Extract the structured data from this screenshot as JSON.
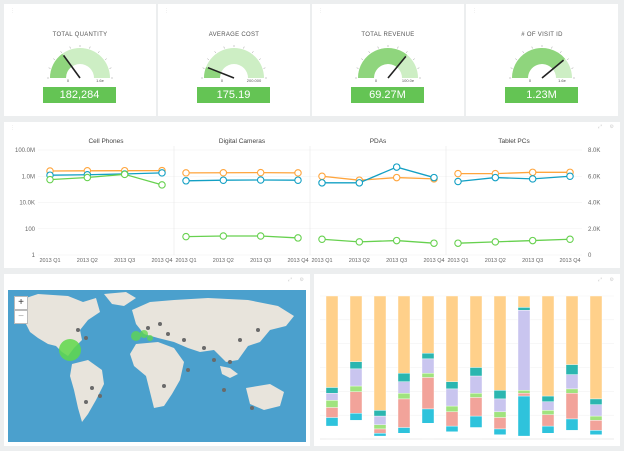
{
  "kpis": [
    {
      "title": "TOTAL QUANTITY",
      "value": "182,284",
      "min_label": "0",
      "max_label": "1.6e",
      "level": 0.3
    },
    {
      "title": "AVERAGE COST",
      "value": "175.19",
      "min_label": "0",
      "max_label": "200.000",
      "level": 0.12
    },
    {
      "title": "TOTAL REVENUE",
      "value": "69.27M",
      "min_label": "0",
      "max_label": "100.0e",
      "level": 0.72
    },
    {
      "title": "# OF VISIT ID",
      "value": "1.23M",
      "min_label": "0",
      "max_label": "1.6e",
      "level": 0.78
    }
  ],
  "colors": {
    "accent": "#64c454",
    "gauge_fill": "#8fd57d",
    "gauge_track": "#cdeec4",
    "orange": "#ffa53d",
    "blue": "#13a0c4",
    "green": "#67d14f"
  },
  "chart_data": {
    "type": "line",
    "panels": [
      "Cell Phones",
      "Digital Cameras",
      "PDAs",
      "Tablet PCs"
    ],
    "categories": [
      "2013 Q1",
      "2013 Q2",
      "2013 Q3",
      "2013 Q4"
    ],
    "y_left": {
      "scale": "log",
      "ticks": [
        "100.0M",
        "1.0M",
        "10.0K",
        "100",
        "1"
      ]
    },
    "y_right": {
      "scale": "linear",
      "ticks": [
        "8.0K",
        "6.0K",
        "4.0K",
        "2.0K",
        "0"
      ],
      "range": [
        0,
        8000
      ]
    },
    "series": [
      {
        "color": "orange",
        "panels": [
          [
            2500000,
            2600000,
            2650000,
            2700000
          ],
          [
            1800000,
            1850000,
            1900000,
            1800000
          ],
          [
            6000,
            5700,
            5900,
            5800
          ],
          [
            6200,
            6200,
            6300,
            6300
          ]
        ]
      },
      {
        "color": "blue",
        "panels": [
          [
            1200000,
            1300000,
            1500000,
            1800000
          ],
          [
            450000,
            500000,
            520000,
            500000
          ],
          [
            5500,
            5500,
            6700,
            5900
          ],
          [
            5600,
            5900,
            5800,
            6000
          ]
        ]
      },
      {
        "color": "green",
        "panels": [
          [
            550000,
            800000,
            1400000,
            220000
          ],
          [
            25,
            28,
            28,
            20
          ],
          [
            1200,
            1000,
            1100,
            900
          ],
          [
            900,
            1000,
            1100,
            1200
          ]
        ]
      }
    ]
  },
  "map": {
    "zoom_in": "+",
    "zoom_out": "−"
  }
}
